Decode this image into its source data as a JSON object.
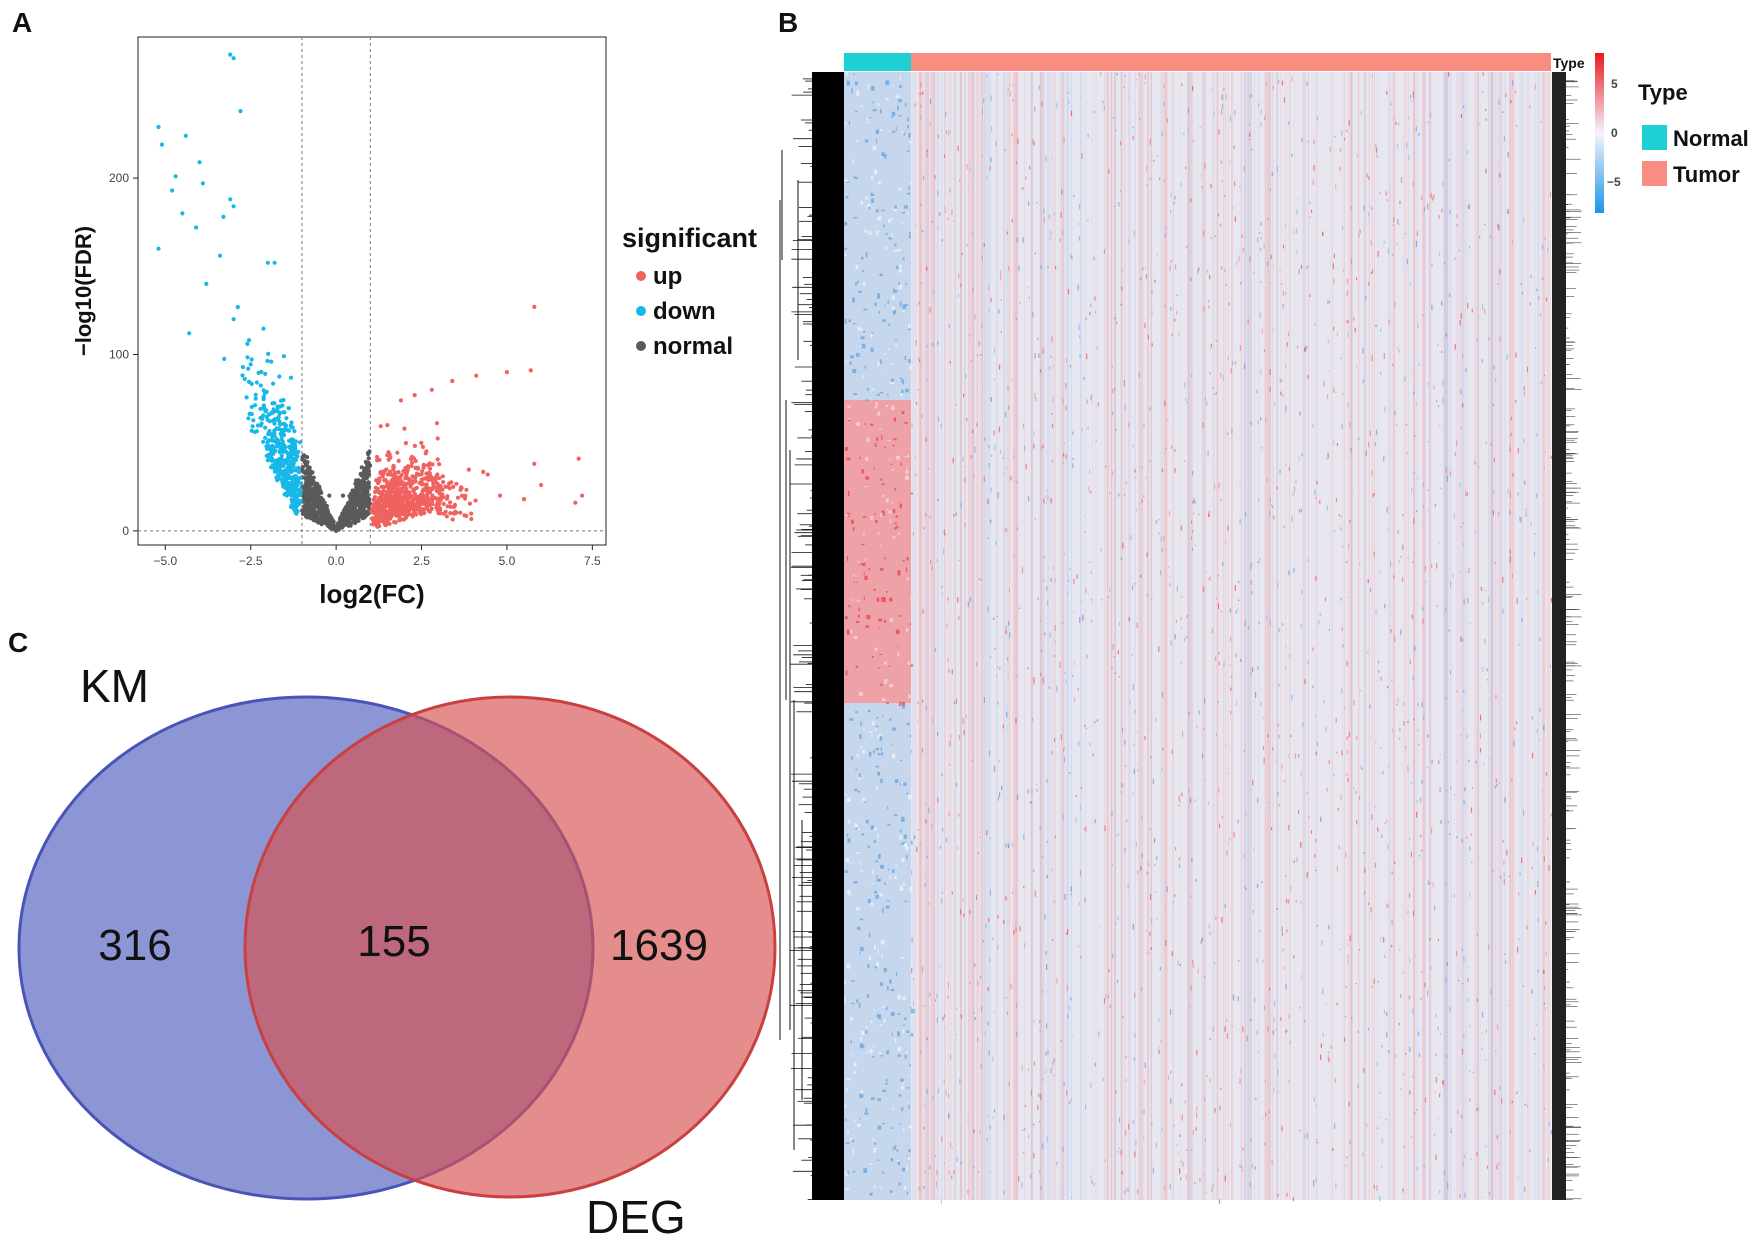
{
  "panels": {
    "A": "A",
    "B": "B",
    "C": "C"
  },
  "chart_data": [
    {
      "id": "volcano",
      "type": "scatter",
      "xlabel": "log2(FC)",
      "ylabel": "−log10(FDR)",
      "xlim": [
        -5.8,
        7.9
      ],
      "ylim": [
        -8,
        280
      ],
      "x_ticks": [
        -5.0,
        -2.5,
        0.0,
        2.5,
        5.0,
        7.5
      ],
      "x_tick_labels": [
        "−5.0",
        "−2.5",
        "0.0",
        "2.5",
        "5.0",
        "7.5"
      ],
      "y_ticks": [
        0,
        100,
        200
      ],
      "y_tick_labels": [
        "0",
        "100",
        "200"
      ],
      "thresholds": {
        "log2fc": [
          -1,
          1
        ],
        "fdr_y": 0
      },
      "grid": false,
      "legend": {
        "title": "significant",
        "position": "right",
        "items": [
          {
            "label": "up",
            "color": "#f0625f"
          },
          {
            "label": "down",
            "color": "#16b8e8"
          },
          {
            "label": "normal",
            "color": "#5a5a5a"
          }
        ]
      },
      "series": [
        {
          "name": "up",
          "color": "#f0625f",
          "points": [
            [
              5.8,
              127
            ],
            [
              5.7,
              91
            ],
            [
              5.0,
              90
            ],
            [
              4.1,
              88
            ],
            [
              3.4,
              85
            ],
            [
              2.8,
              80
            ],
            [
              2.3,
              77
            ],
            [
              1.9,
              74
            ],
            [
              7.1,
              41
            ],
            [
              7.2,
              20
            ],
            [
              7.0,
              16
            ],
            [
              5.8,
              38
            ],
            [
              6.0,
              26
            ],
            [
              5.5,
              18
            ],
            [
              4.8,
              20
            ],
            [
              1.2,
              40
            ],
            [
              1.5,
              60
            ],
            [
              2.0,
              58
            ]
          ]
        },
        {
          "name": "down",
          "color": "#16b8e8",
          "points": [
            [
              -3.1,
              270
            ],
            [
              -3.0,
              268
            ],
            [
              -2.8,
              238
            ],
            [
              -5.2,
              229
            ],
            [
              -5.1,
              219
            ],
            [
              -4.4,
              224
            ],
            [
              -4.0,
              209
            ],
            [
              -3.9,
              197
            ],
            [
              -4.7,
              201
            ],
            [
              -4.8,
              193
            ],
            [
              -4.5,
              180
            ],
            [
              -3.3,
              178
            ],
            [
              -4.1,
              172
            ],
            [
              -5.2,
              160
            ],
            [
              -3.1,
              188
            ],
            [
              -3.0,
              184
            ],
            [
              -2.0,
              152
            ],
            [
              -1.8,
              152
            ],
            [
              -3.4,
              156
            ],
            [
              -3.8,
              140
            ],
            [
              -4.3,
              112
            ],
            [
              -3.0,
              120
            ],
            [
              -2.6,
              106
            ],
            [
              -1.9,
              96
            ],
            [
              -1.7,
              70
            ],
            [
              -2.0,
              40
            ],
            [
              -1.3,
              30
            ],
            [
              -1.1,
              15
            ]
          ]
        },
        {
          "name": "normal",
          "color": "#5a5a5a",
          "points": [
            [
              0,
              0
            ],
            [
              -0.5,
              5
            ],
            [
              0.5,
              5
            ],
            [
              -0.9,
              30
            ],
            [
              0.9,
              30
            ],
            [
              0.2,
              20
            ],
            [
              -0.2,
              20
            ]
          ]
        }
      ]
    },
    {
      "id": "heatmap",
      "type": "heatmap",
      "annotation_title": "Type",
      "scale_ticks": [
        "5",
        "0",
        "−5"
      ],
      "scale_values": [
        5,
        0,
        -5
      ],
      "scale_colors": [
        "#e8191e",
        "#ffffff",
        "#1995ea"
      ],
      "legend": {
        "title": "Type",
        "items": [
          {
            "label": "Normal",
            "color": "#1cd0d3"
          },
          {
            "label": "Tumor",
            "color": "#fa8d82"
          }
        ]
      },
      "groups": [
        {
          "name": "Normal",
          "fraction": 0.094
        },
        {
          "name": "Tumor",
          "fraction": 0.906
        }
      ]
    },
    {
      "id": "venn",
      "type": "venn",
      "sets": [
        {
          "name": "KM",
          "color": "#5060c0"
        },
        {
          "name": "DEG",
          "color": "#d85050"
        }
      ],
      "counts": {
        "KM_only": "316",
        "both": "155",
        "DEG_only": "1639"
      }
    }
  ]
}
